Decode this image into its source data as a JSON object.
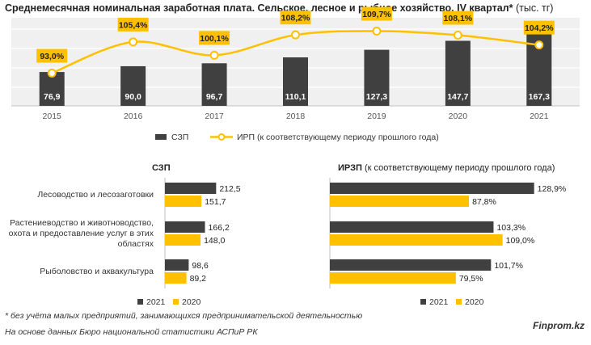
{
  "title": {
    "bold": "Среднемесячная номинальная заработная плата. Сельское, лесное и рыбное хозяйство. IV квартал*",
    "unit": " (тыс. тг)"
  },
  "colors": {
    "dark": "#404040",
    "yellow": "#ffc000",
    "band": "#f0f0f0",
    "grid": "#d9d9d9"
  },
  "chart_data": [
    {
      "type": "bar",
      "title": "Среднемесячная номинальная заработная плата. Сельское, лесное и рыбное хозяйство. IV квартал* (тыс. тг)",
      "categories": [
        "2015",
        "2016",
        "2017",
        "2018",
        "2019",
        "2020",
        "2021"
      ],
      "series": [
        {
          "name": "СЗП",
          "type": "bar",
          "values": [
            76.9,
            90.0,
            96.7,
            110.1,
            127.3,
            147.7,
            167.3
          ],
          "labels": [
            "76,9",
            "90,0",
            "96,7",
            "110,1",
            "127,3",
            "147,7",
            "167,3"
          ]
        },
        {
          "name": "ИРП (к соответствующему периоду прошлого года)",
          "type": "line",
          "values": [
            93.0,
            105.4,
            100.1,
            108.2,
            109.7,
            108.1,
            104.2
          ],
          "labels": [
            "93,0%",
            "105,4%",
            "100,1%",
            "108,2%",
            "109,7%",
            "108,1%",
            "104,2%"
          ]
        }
      ],
      "grid": true,
      "legend": "bottom"
    },
    {
      "type": "bar",
      "orientation": "horizontal",
      "title": "СЗП",
      "categories": [
        "Лесоводство и лесозаготовки",
        "Растениеводство и животноводство, охота и предоставление услуг в этих областях",
        "Рыболовство и аквакультура"
      ],
      "series": [
        {
          "name": "2021",
          "values": [
            212.5,
            166.2,
            98.6
          ],
          "labels": [
            "212,5",
            "166,2",
            "98,6"
          ]
        },
        {
          "name": "2020",
          "values": [
            151.7,
            148.0,
            89.2
          ],
          "labels": [
            "151,7",
            "148,0",
            "89,2"
          ]
        }
      ],
      "legend": "bottom"
    },
    {
      "type": "bar",
      "orientation": "horizontal",
      "title": "ИРЗП (к соответствующему периоду прошлого года)",
      "categories": [
        "Лесоводство и лесозаготовки",
        "Растениеводство и животноводство, охота и предоставление услуг в этих областях",
        "Рыболовство и аквакультура"
      ],
      "series": [
        {
          "name": "2021",
          "values": [
            128.9,
            103.3,
            101.7
          ],
          "labels": [
            "128,9%",
            "103,3%",
            "101,7%"
          ]
        },
        {
          "name": "2020",
          "values": [
            87.8,
            109.0,
            79.5
          ],
          "labels": [
            "87,8%",
            "109,0%",
            "79,5%"
          ]
        }
      ],
      "legend": "bottom"
    }
  ],
  "categories_display": [
    [
      "Лесоводство и лесозаготовки"
    ],
    [
      "Растениеводство и животноводство,",
      "охота и предоставление услуг в этих",
      "областях"
    ],
    [
      "Рыболовство и аквакультура"
    ]
  ],
  "top_legend": {
    "bar": "СЗП",
    "line": "ИРП (к соответствующему периоду прошлого года)"
  },
  "left_header": "СЗП",
  "right_header": "ИРЗП",
  "right_header_rest": " (к соответствующему периоду прошлого года)",
  "legend_2021": "2021",
  "legend_2020": "2020",
  "footnote": "* без учёта малых предприятий, занимающихся предпринимательской деятельностью",
  "source": "На основе данных Бюро национальной статистики АСПиР РК",
  "brand": "Finprom.kz"
}
